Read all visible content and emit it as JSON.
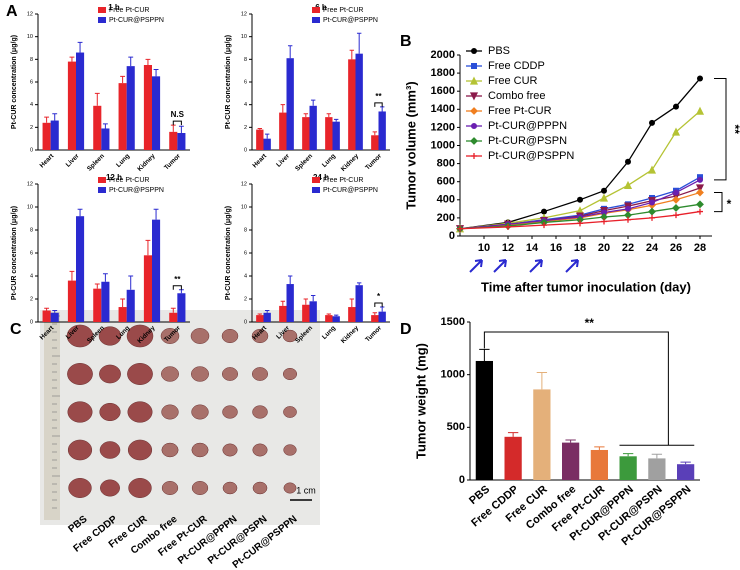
{
  "chart_data": [
    {
      "type": "bar",
      "panel": "A",
      "title": "1 h",
      "ylabel": "Pt-CUR concentration (μg/g)",
      "annotation": "N.S",
      "categories": [
        "Heart",
        "Liver",
        "Spleen",
        "Lung",
        "Kidney",
        "Tumor"
      ],
      "series": [
        {
          "name": "Free Pt-CUR",
          "color": "#e8242a",
          "values": [
            2.4,
            7.8,
            3.9,
            5.9,
            7.5,
            1.6
          ],
          "errors": [
            0.5,
            0.4,
            1.1,
            0.6,
            0.5,
            0.6
          ]
        },
        {
          "name": "Pt-CUR@PSPPN",
          "color": "#2a2ad0",
          "values": [
            2.6,
            8.6,
            1.9,
            7.4,
            6.5,
            1.5
          ],
          "errors": [
            0.6,
            0.9,
            0.4,
            0.8,
            0.6,
            0.6
          ]
        }
      ],
      "ylim": [
        0,
        12
      ],
      "yticks": [
        0,
        2,
        4,
        6,
        8,
        10,
        12
      ]
    },
    {
      "type": "bar",
      "title": "6 h",
      "ylabel": "Pt-CUR concentration (μg/g)",
      "annotation": "**",
      "categories": [
        "Heart",
        "Liver",
        "Spleen",
        "Lung",
        "Kidney",
        "Tumor"
      ],
      "series": [
        {
          "name": "Free Pt-CUR",
          "color": "#e8242a",
          "values": [
            1.8,
            3.3,
            2.9,
            2.9,
            8.0,
            1.3
          ],
          "errors": [
            0.1,
            0.7,
            0.3,
            0.3,
            0.8,
            0.3
          ]
        },
        {
          "name": "Pt-CUR@PSPPN",
          "color": "#2a2ad0",
          "values": [
            1.0,
            8.1,
            3.9,
            2.5,
            8.5,
            3.4
          ],
          "errors": [
            0.4,
            1.1,
            0.5,
            0.2,
            1.8,
            0.4
          ]
        }
      ],
      "ylim": [
        0,
        12
      ],
      "yticks": [
        0,
        2,
        4,
        6,
        8,
        10,
        12
      ]
    },
    {
      "type": "bar",
      "title": "12 h",
      "ylabel": "Pt-CUR concentration (μg/g)",
      "annotation": "**",
      "categories": [
        "Heart",
        "Liver",
        "Spleen",
        "Lung",
        "Kidney",
        "Tumor"
      ],
      "series": [
        {
          "name": "Free Pt-CUR",
          "color": "#e8242a",
          "values": [
            1.0,
            3.6,
            2.9,
            1.3,
            5.8,
            0.8
          ],
          "errors": [
            0.2,
            0.8,
            0.4,
            0.7,
            1.3,
            0.4
          ]
        },
        {
          "name": "Pt-CUR@PSPPN",
          "color": "#2a2ad0",
          "values": [
            0.8,
            9.2,
            3.5,
            2.8,
            8.9,
            2.5
          ],
          "errors": [
            0.2,
            0.6,
            0.7,
            1.2,
            0.9,
            0.3
          ]
        }
      ],
      "ylim": [
        0,
        12
      ],
      "yticks": [
        0,
        2,
        4,
        6,
        8,
        10,
        12
      ]
    },
    {
      "type": "bar",
      "title": "24 h",
      "ylabel": "Pt-CUR concentration (μg/g)",
      "annotation": "*",
      "categories": [
        "Heart",
        "Liver",
        "Spleen",
        "Lung",
        "Kidney",
        "Tumor"
      ],
      "series": [
        {
          "name": "Free Pt-CUR",
          "color": "#e8242a",
          "values": [
            0.6,
            1.4,
            1.5,
            0.6,
            1.3,
            0.6
          ],
          "errors": [
            0.1,
            0.4,
            0.5,
            0.1,
            0.7,
            0.2
          ]
        },
        {
          "name": "Pt-CUR@PSPPN",
          "color": "#2a2ad0",
          "values": [
            0.8,
            3.3,
            1.8,
            0.5,
            3.2,
            0.9
          ],
          "errors": [
            0.2,
            0.7,
            0.5,
            0.1,
            0.2,
            0.4
          ]
        }
      ],
      "ylim": [
        0,
        12
      ],
      "yticks": [
        0,
        2,
        4,
        6,
        8,
        10,
        12
      ]
    },
    {
      "type": "line",
      "panel": "B",
      "ylabel": "Tumor volume (mm³)",
      "xlabel": "Time after tumor inoculation (day)",
      "annotations": [
        "**",
        "*"
      ],
      "x": [
        8,
        12,
        15,
        18,
        20,
        22,
        24,
        26,
        28
      ],
      "dosing_days": [
        10,
        12,
        15,
        18
      ],
      "series": [
        {
          "name": "PBS",
          "color": "#000000",
          "marker": "circle",
          "values": [
            80,
            150,
            270,
            400,
            500,
            820,
            1250,
            1430,
            1740
          ]
        },
        {
          "name": "Free CDDP",
          "color": "#2a4fd8",
          "marker": "square",
          "values": [
            80,
            130,
            180,
            230,
            300,
            350,
            420,
            500,
            650
          ]
        },
        {
          "name": "Free CUR",
          "color": "#b5c334",
          "marker": "triangle",
          "values": [
            80,
            140,
            200,
            280,
            420,
            560,
            730,
            1150,
            1380
          ]
        },
        {
          "name": "Combo free",
          "color": "#8b1a4a",
          "marker": "tri-down",
          "values": [
            80,
            130,
            170,
            220,
            280,
            330,
            390,
            440,
            530
          ]
        },
        {
          "name": "Free Pt-CUR",
          "color": "#f07f20",
          "marker": "diamond",
          "values": [
            80,
            120,
            160,
            200,
            250,
            290,
            340,
            400,
            480
          ]
        },
        {
          "name": "Pt-CUR@PPPN",
          "color": "#6a1fb0",
          "marker": "circle",
          "values": [
            80,
            130,
            170,
            210,
            260,
            300,
            370,
            480,
            620
          ]
        },
        {
          "name": "Pt-CUR@PSPN",
          "color": "#2e8b2e",
          "marker": "diamond",
          "values": [
            80,
            110,
            150,
            180,
            210,
            230,
            270,
            310,
            350
          ]
        },
        {
          "name": "Pt-CUR@PSPPN",
          "color": "#e8202a",
          "marker": "plus",
          "values": [
            80,
            100,
            120,
            140,
            160,
            180,
            200,
            230,
            270
          ]
        }
      ],
      "xlim": [
        8,
        29
      ],
      "xticks": [
        10,
        12,
        14,
        16,
        18,
        20,
        22,
        24,
        26,
        28
      ],
      "ylim": [
        0,
        2000
      ],
      "yticks": [
        0,
        200,
        400,
        600,
        800,
        1000,
        1200,
        1400,
        1600,
        1800,
        2000
      ]
    },
    {
      "type": "bar",
      "panel": "D",
      "ylabel": "Tumor weight (mg)",
      "annotation": "**",
      "categories": [
        "PBS",
        "Free CDDP",
        "Free CUR",
        "Combo free",
        "Free Pt-CUR",
        "Pt-CUR@PPPN",
        "Pt-CUR@PSPN",
        "Pt-CUR@PSPPN"
      ],
      "series": [
        {
          "colors": [
            "#000000",
            "#d42a2a",
            "#e4b07a",
            "#7a2d63",
            "#e8783a",
            "#3c9a3c",
            "#a0a0a0",
            "#5a3fb8"
          ],
          "values": [
            1130,
            410,
            860,
            355,
            285,
            225,
            205,
            150
          ],
          "errors": [
            110,
            40,
            160,
            25,
            30,
            25,
            40,
            20
          ]
        }
      ],
      "ylim": [
        0,
        1500
      ],
      "yticks": [
        0,
        500,
        1000,
        1500
      ]
    }
  ],
  "photo": {
    "panel": "C",
    "labels": [
      "PBS",
      "Free CDDP",
      "Free CUR",
      "Combo free",
      "Free Pt-CUR",
      "Pt-CUR@PPPN",
      "Pt-CUR@PSPN",
      "Pt-CUR@PSPPN"
    ],
    "scale_bar": "1 cm"
  }
}
